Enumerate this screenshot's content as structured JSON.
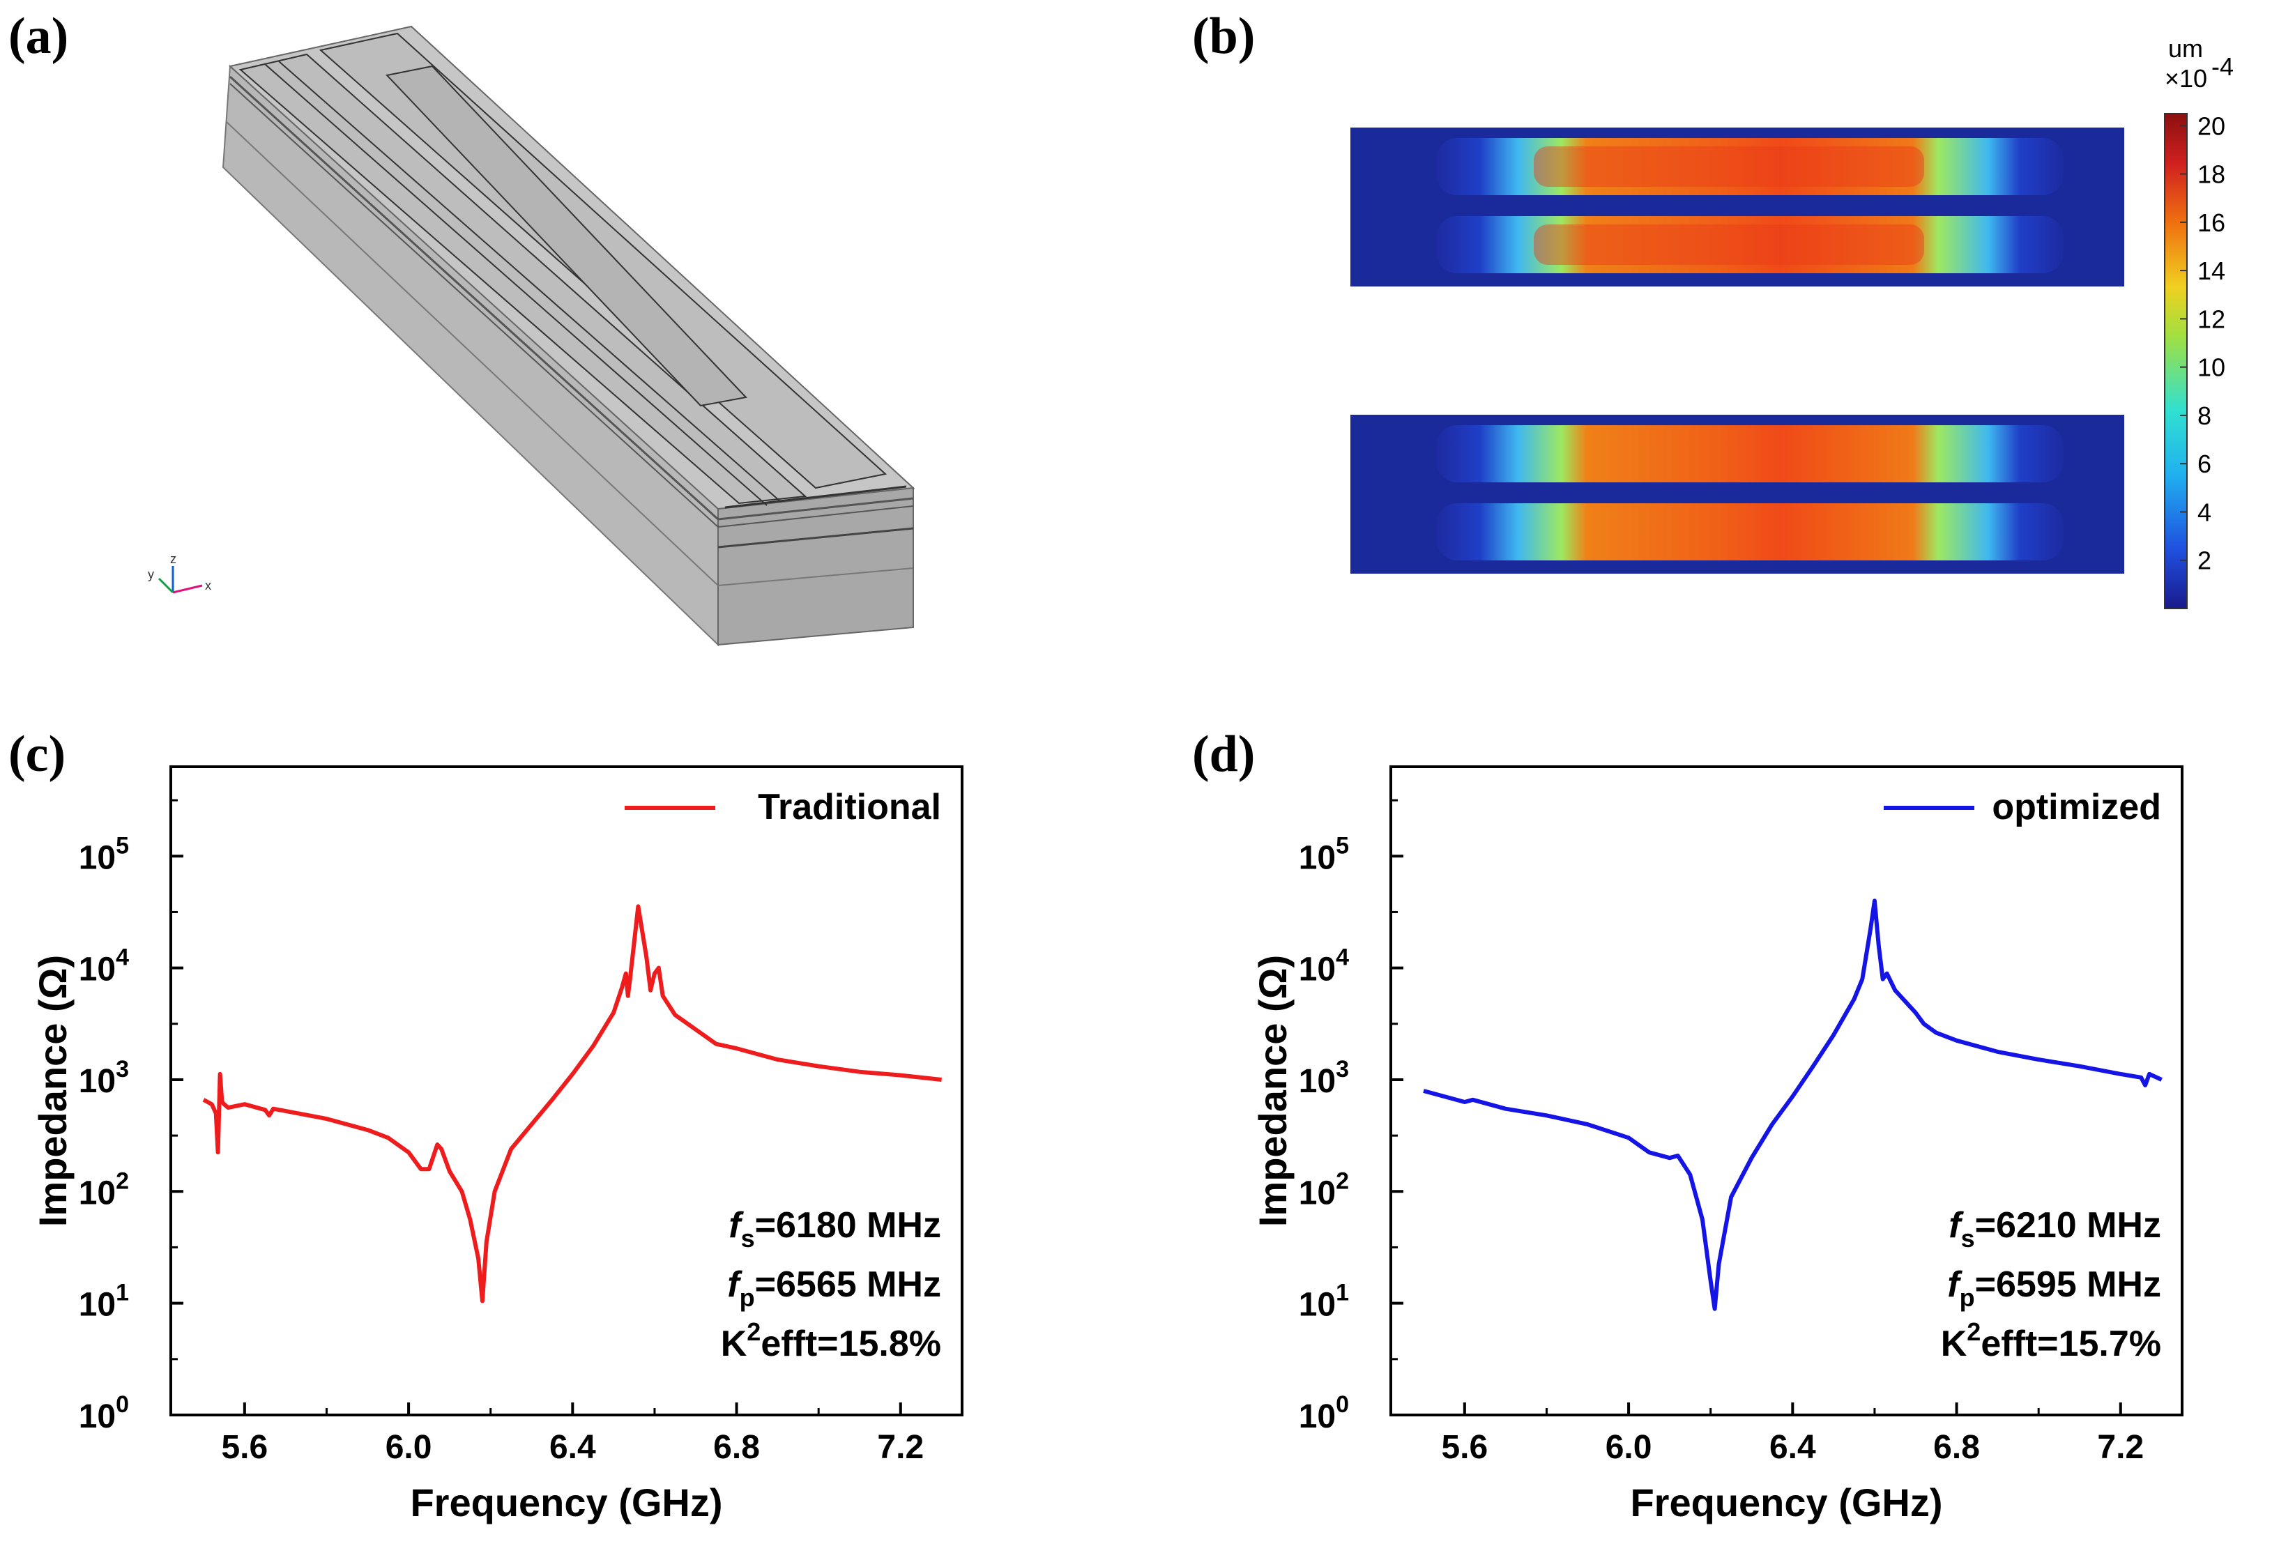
{
  "panel_labels": {
    "a": "(a)",
    "b": "(b)",
    "c": "(c)",
    "d": "(d)"
  },
  "model": {
    "axis_triad": {
      "x": "x",
      "y": "y",
      "z": "z"
    }
  },
  "colorbar": {
    "unit": "um",
    "scale_base": "×10",
    "scale_exp": "-4",
    "ticks": [
      "20",
      "18",
      "16",
      "14",
      "12",
      "10",
      "8",
      "6",
      "4",
      "2"
    ],
    "range": [
      0,
      20.5
    ],
    "colors": [
      "#1a1a8c",
      "#2050e0",
      "#20b0f0",
      "#30e0d0",
      "#a0e040",
      "#f0d020",
      "#f07010",
      "#d02020",
      "#8c1010"
    ]
  },
  "chart_data": [
    {
      "type": "line",
      "panel": "c",
      "xlabel": "Frequency (GHz)",
      "ylabel": "Impedance (Ω)",
      "xlim": [
        5.42,
        7.35
      ],
      "ylim_log10": [
        0,
        5.8
      ],
      "xticks": [
        "5.6",
        "6.0",
        "6.4",
        "6.8",
        "7.2"
      ],
      "xtick_values": [
        5.6,
        6.0,
        6.4,
        6.8,
        7.2
      ],
      "yticks": [
        {
          "base": "10",
          "exp": "0"
        },
        {
          "base": "10",
          "exp": "1"
        },
        {
          "base": "10",
          "exp": "2"
        },
        {
          "base": "10",
          "exp": "3"
        },
        {
          "base": "10",
          "exp": "4"
        },
        {
          "base": "10",
          "exp": "5"
        }
      ],
      "ytick_values": [
        0,
        1,
        2,
        3,
        4,
        5
      ],
      "series": [
        {
          "name": "Traditional",
          "color": "#ee1c1c",
          "x": [
            5.5,
            5.52,
            5.53,
            5.535,
            5.54,
            5.545,
            5.55,
            5.56,
            5.6,
            5.65,
            5.66,
            5.67,
            5.7,
            5.8,
            5.9,
            5.95,
            6.0,
            6.03,
            6.05,
            6.07,
            6.08,
            6.1,
            6.13,
            6.15,
            6.17,
            6.18,
            6.19,
            6.21,
            6.25,
            6.3,
            6.35,
            6.4,
            6.45,
            6.5,
            6.52,
            6.53,
            6.535,
            6.54,
            6.56,
            6.58,
            6.59,
            6.6,
            6.61,
            6.62,
            6.65,
            6.7,
            6.75,
            6.8,
            6.9,
            7.0,
            7.1,
            7.2,
            7.3
          ],
          "log10_impedance": [
            2.82,
            2.78,
            2.7,
            2.35,
            3.05,
            2.8,
            2.78,
            2.75,
            2.78,
            2.73,
            2.68,
            2.74,
            2.72,
            2.65,
            2.55,
            2.48,
            2.35,
            2.2,
            2.2,
            2.42,
            2.38,
            2.18,
            2.0,
            1.75,
            1.4,
            1.02,
            1.55,
            2.0,
            2.38,
            2.6,
            2.82,
            3.05,
            3.3,
            3.6,
            3.82,
            3.95,
            3.75,
            3.9,
            4.55,
            4.1,
            3.8,
            3.95,
            4.0,
            3.75,
            3.58,
            3.45,
            3.32,
            3.28,
            3.18,
            3.12,
            3.07,
            3.04,
            3.0
          ]
        }
      ],
      "annotations": [
        {
          "sym": "f",
          "sub": "s",
          "text": "=6180 MHz"
        },
        {
          "sym": "f",
          "sub": "p",
          "text": "=6565 MHz"
        },
        {
          "sym": "K",
          "sup": "2",
          "text": "efft=15.8%"
        }
      ]
    },
    {
      "type": "line",
      "panel": "d",
      "xlabel": "Frequency (GHz)",
      "ylabel": "Impedance (Ω)",
      "xlim": [
        5.42,
        7.35
      ],
      "ylim_log10": [
        0,
        5.8
      ],
      "xticks": [
        "5.6",
        "6.0",
        "6.4",
        "6.8",
        "7.2"
      ],
      "xtick_values": [
        5.6,
        6.0,
        6.4,
        6.8,
        7.2
      ],
      "yticks": [
        {
          "base": "10",
          "exp": "0"
        },
        {
          "base": "10",
          "exp": "1"
        },
        {
          "base": "10",
          "exp": "2"
        },
        {
          "base": "10",
          "exp": "3"
        },
        {
          "base": "10",
          "exp": "4"
        },
        {
          "base": "10",
          "exp": "5"
        }
      ],
      "ytick_values": [
        0,
        1,
        2,
        3,
        4,
        5
      ],
      "series": [
        {
          "name": "optimized",
          "color": "#1414e6",
          "x": [
            5.5,
            5.55,
            5.6,
            5.62,
            5.7,
            5.8,
            5.9,
            6.0,
            6.05,
            6.1,
            6.12,
            6.15,
            6.18,
            6.2,
            6.21,
            6.22,
            6.25,
            6.3,
            6.35,
            6.4,
            6.45,
            6.5,
            6.55,
            6.57,
            6.59,
            6.6,
            6.61,
            6.62,
            6.63,
            6.65,
            6.7,
            6.72,
            6.75,
            6.8,
            6.9,
            7.0,
            7.1,
            7.2,
            7.25,
            7.26,
            7.27,
            7.3
          ],
          "log10_impedance": [
            2.9,
            2.85,
            2.8,
            2.82,
            2.74,
            2.68,
            2.6,
            2.48,
            2.35,
            2.3,
            2.32,
            2.15,
            1.75,
            1.2,
            0.95,
            1.35,
            1.95,
            2.3,
            2.6,
            2.85,
            3.12,
            3.4,
            3.72,
            3.9,
            4.35,
            4.6,
            4.2,
            3.9,
            3.95,
            3.8,
            3.6,
            3.5,
            3.42,
            3.35,
            3.25,
            3.18,
            3.12,
            3.05,
            3.02,
            2.95,
            3.05,
            3.0
          ]
        }
      ],
      "annotations": [
        {
          "sym": "f",
          "sub": "s",
          "text": "=6210 MHz"
        },
        {
          "sym": "f",
          "sub": "p",
          "text": "=6595 MHz"
        },
        {
          "sym": "K",
          "sup": "2",
          "text": "efft=15.7%"
        }
      ]
    }
  ]
}
